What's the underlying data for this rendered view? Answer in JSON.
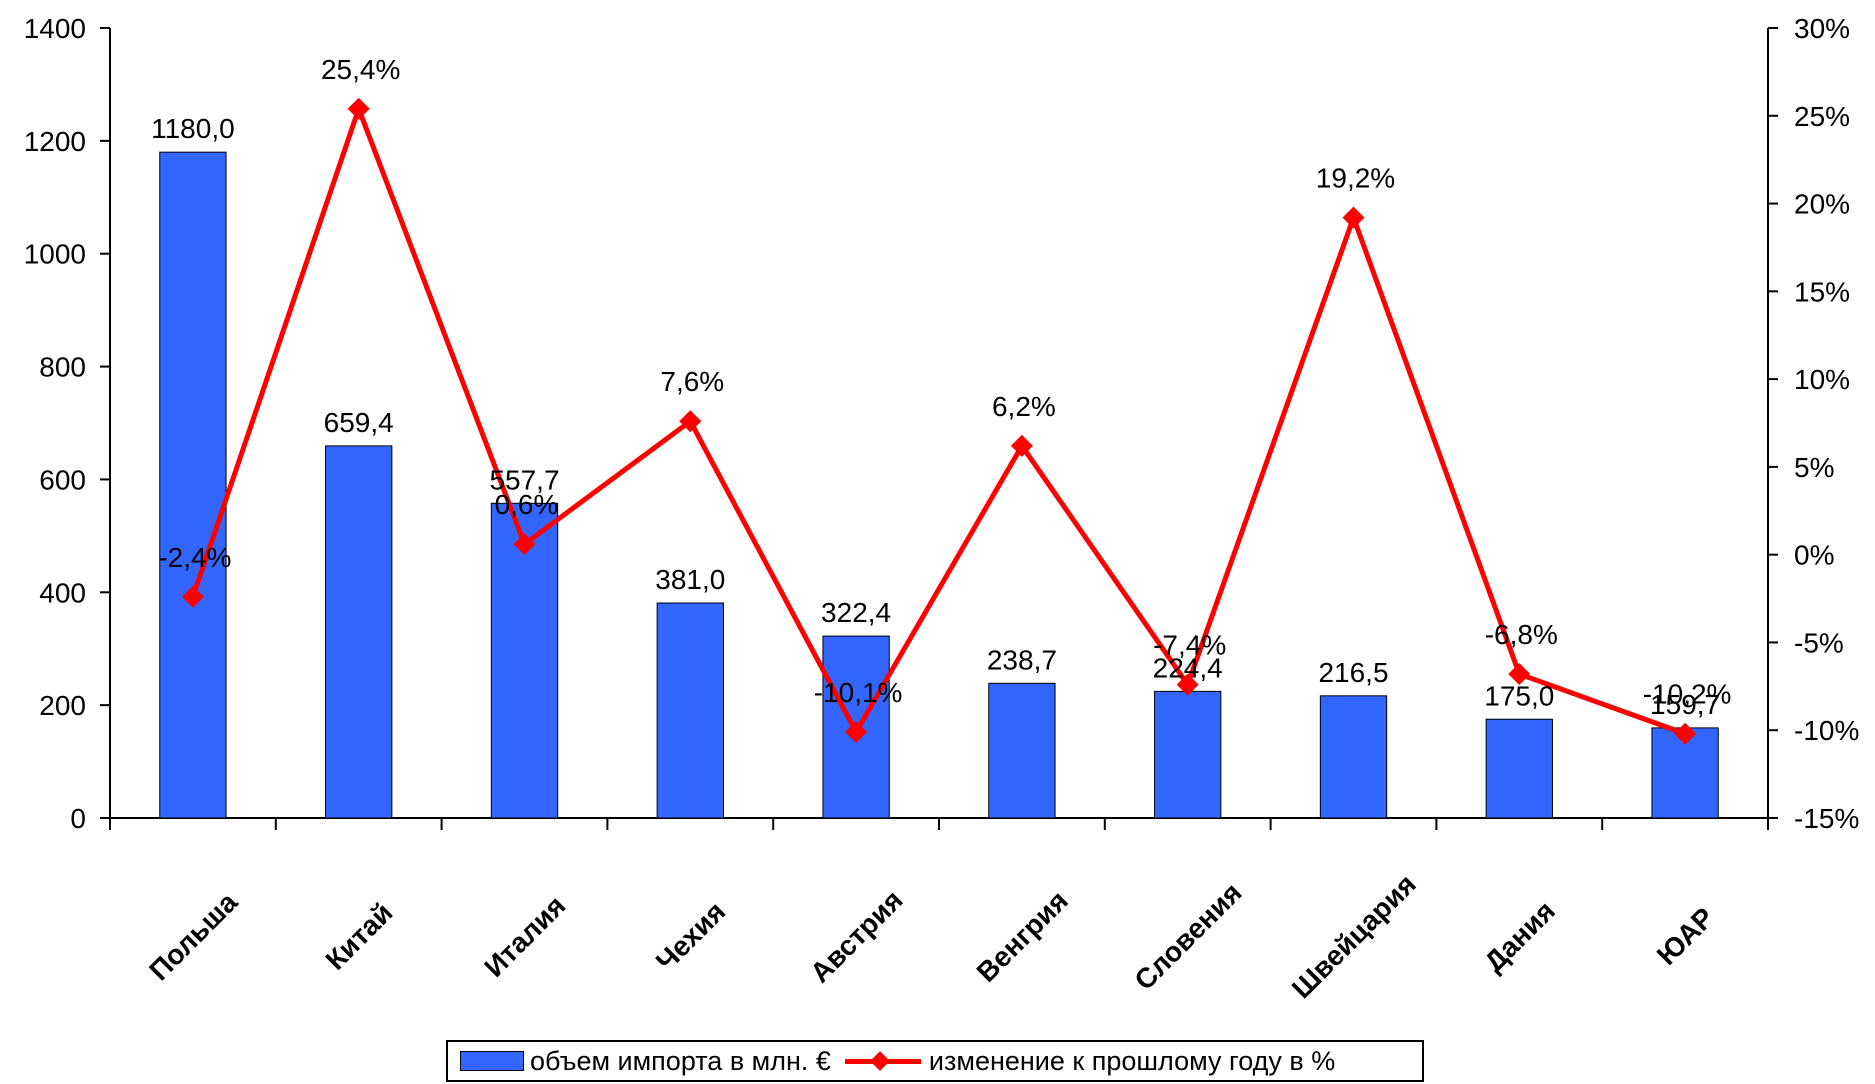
{
  "chart_data": {
    "type": "bar",
    "title": "",
    "categories": [
      "Польша",
      "Китай",
      "Италия",
      "Чехия",
      "Австрия",
      "Венгрия",
      "Словения",
      "Швейцария",
      "Дания",
      "ЮАР"
    ],
    "series": [
      {
        "name": "объем импорта в млн. €",
        "type": "bar",
        "axis": "left",
        "color": "#3366FF",
        "values": [
          1180.0,
          659.4,
          557.7,
          381.0,
          322.4,
          238.7,
          224.4,
          216.5,
          175.0,
          159.7
        ],
        "labels": [
          "1180,0",
          "659,4",
          "557,7",
          "381,0",
          "322,4",
          "238,7",
          "224,4",
          "216,5",
          "175,0",
          "159,7"
        ]
      },
      {
        "name": "изменение к прошлому году в %",
        "type": "line",
        "axis": "right",
        "color": "#FF0000",
        "values": [
          -2.4,
          25.4,
          0.6,
          7.6,
          -10.1,
          6.2,
          -7.4,
          19.2,
          -6.8,
          -10.2
        ],
        "labels": [
          "-2,4%",
          "25,4%",
          "0,6%",
          "7,6%",
          "-10,1%",
          "6,2%",
          "-7,4%",
          "19,2%",
          "-6,8%",
          "-10,2%"
        ]
      }
    ],
    "y_left": {
      "min": 0,
      "max": 1400,
      "step": 200,
      "tick_labels": [
        "0",
        "200",
        "400",
        "600",
        "800",
        "1000",
        "1200",
        "1400"
      ]
    },
    "y_right": {
      "min": -15,
      "max": 30,
      "step": 5,
      "tick_labels": [
        "-15%",
        "-10%",
        "-5%",
        "0%",
        "5%",
        "10%",
        "15%",
        "20%",
        "25%",
        "30%"
      ]
    },
    "grid": false,
    "legend_position": "bottom"
  },
  "legend": {
    "bar_label": "объем импорта в млн. €",
    "line_label": "изменение к прошлому году в %"
  }
}
